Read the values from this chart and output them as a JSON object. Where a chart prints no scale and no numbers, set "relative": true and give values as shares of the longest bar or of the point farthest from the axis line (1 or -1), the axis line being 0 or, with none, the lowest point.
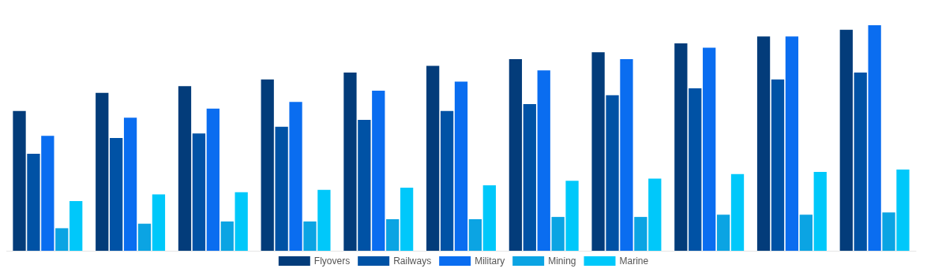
{
  "chart_data": {
    "type": "bar",
    "relative": true,
    "legend": "bottom",
    "categories": [
      null,
      null,
      null,
      null,
      null,
      null,
      null,
      null,
      null,
      null,
      null
    ],
    "series": [
      {
        "name": "Flyovers",
        "color": "#033c7a",
        "values": [
          0.62,
          0.7,
          0.73,
          0.76,
          0.79,
          0.82,
          0.85,
          0.88,
          0.92,
          0.95,
          0.98
        ]
      },
      {
        "name": "Railways",
        "color": "#0052a5",
        "values": [
          0.43,
          0.5,
          0.52,
          0.55,
          0.58,
          0.62,
          0.65,
          0.69,
          0.72,
          0.76,
          0.79
        ]
      },
      {
        "name": "Military",
        "color": "#0a6df0",
        "values": [
          0.51,
          0.59,
          0.63,
          0.66,
          0.71,
          0.75,
          0.8,
          0.85,
          0.9,
          0.95,
          1
        ]
      },
      {
        "name": "Mining",
        "color": "#0ba4e3",
        "values": [
          0.1,
          0.12,
          0.13,
          0.13,
          0.14,
          0.14,
          0.15,
          0.15,
          0.16,
          0.16,
          0.17
        ]
      },
      {
        "name": "Marine",
        "color": "#00c8fa",
        "values": [
          0.22,
          0.25,
          0.26,
          0.27,
          0.28,
          0.29,
          0.31,
          0.32,
          0.34,
          0.35,
          0.36
        ]
      }
    ]
  }
}
